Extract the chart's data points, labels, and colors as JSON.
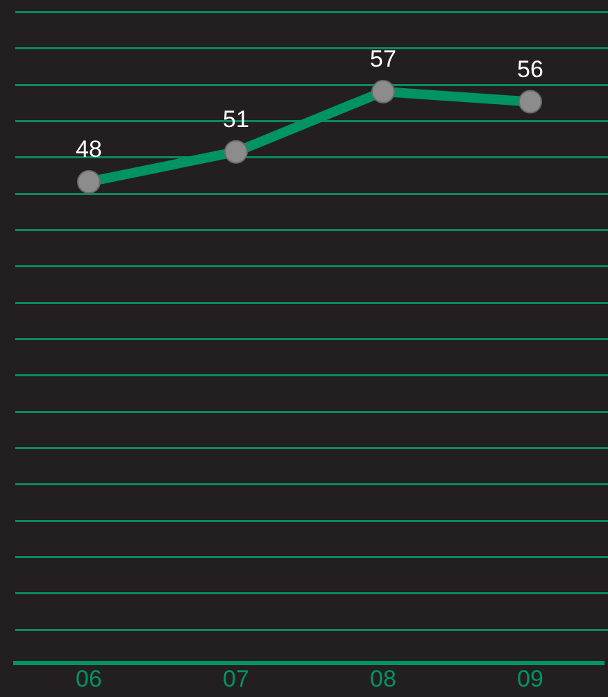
{
  "chart_data": {
    "type": "line",
    "categories": [
      "06",
      "07",
      "08",
      "09"
    ],
    "series": [
      {
        "color": "#009463",
        "values": [
          48,
          51,
          57,
          56
        ]
      }
    ],
    "marker": "circle",
    "data_labels": true,
    "tick_labels": "x"
  }
}
